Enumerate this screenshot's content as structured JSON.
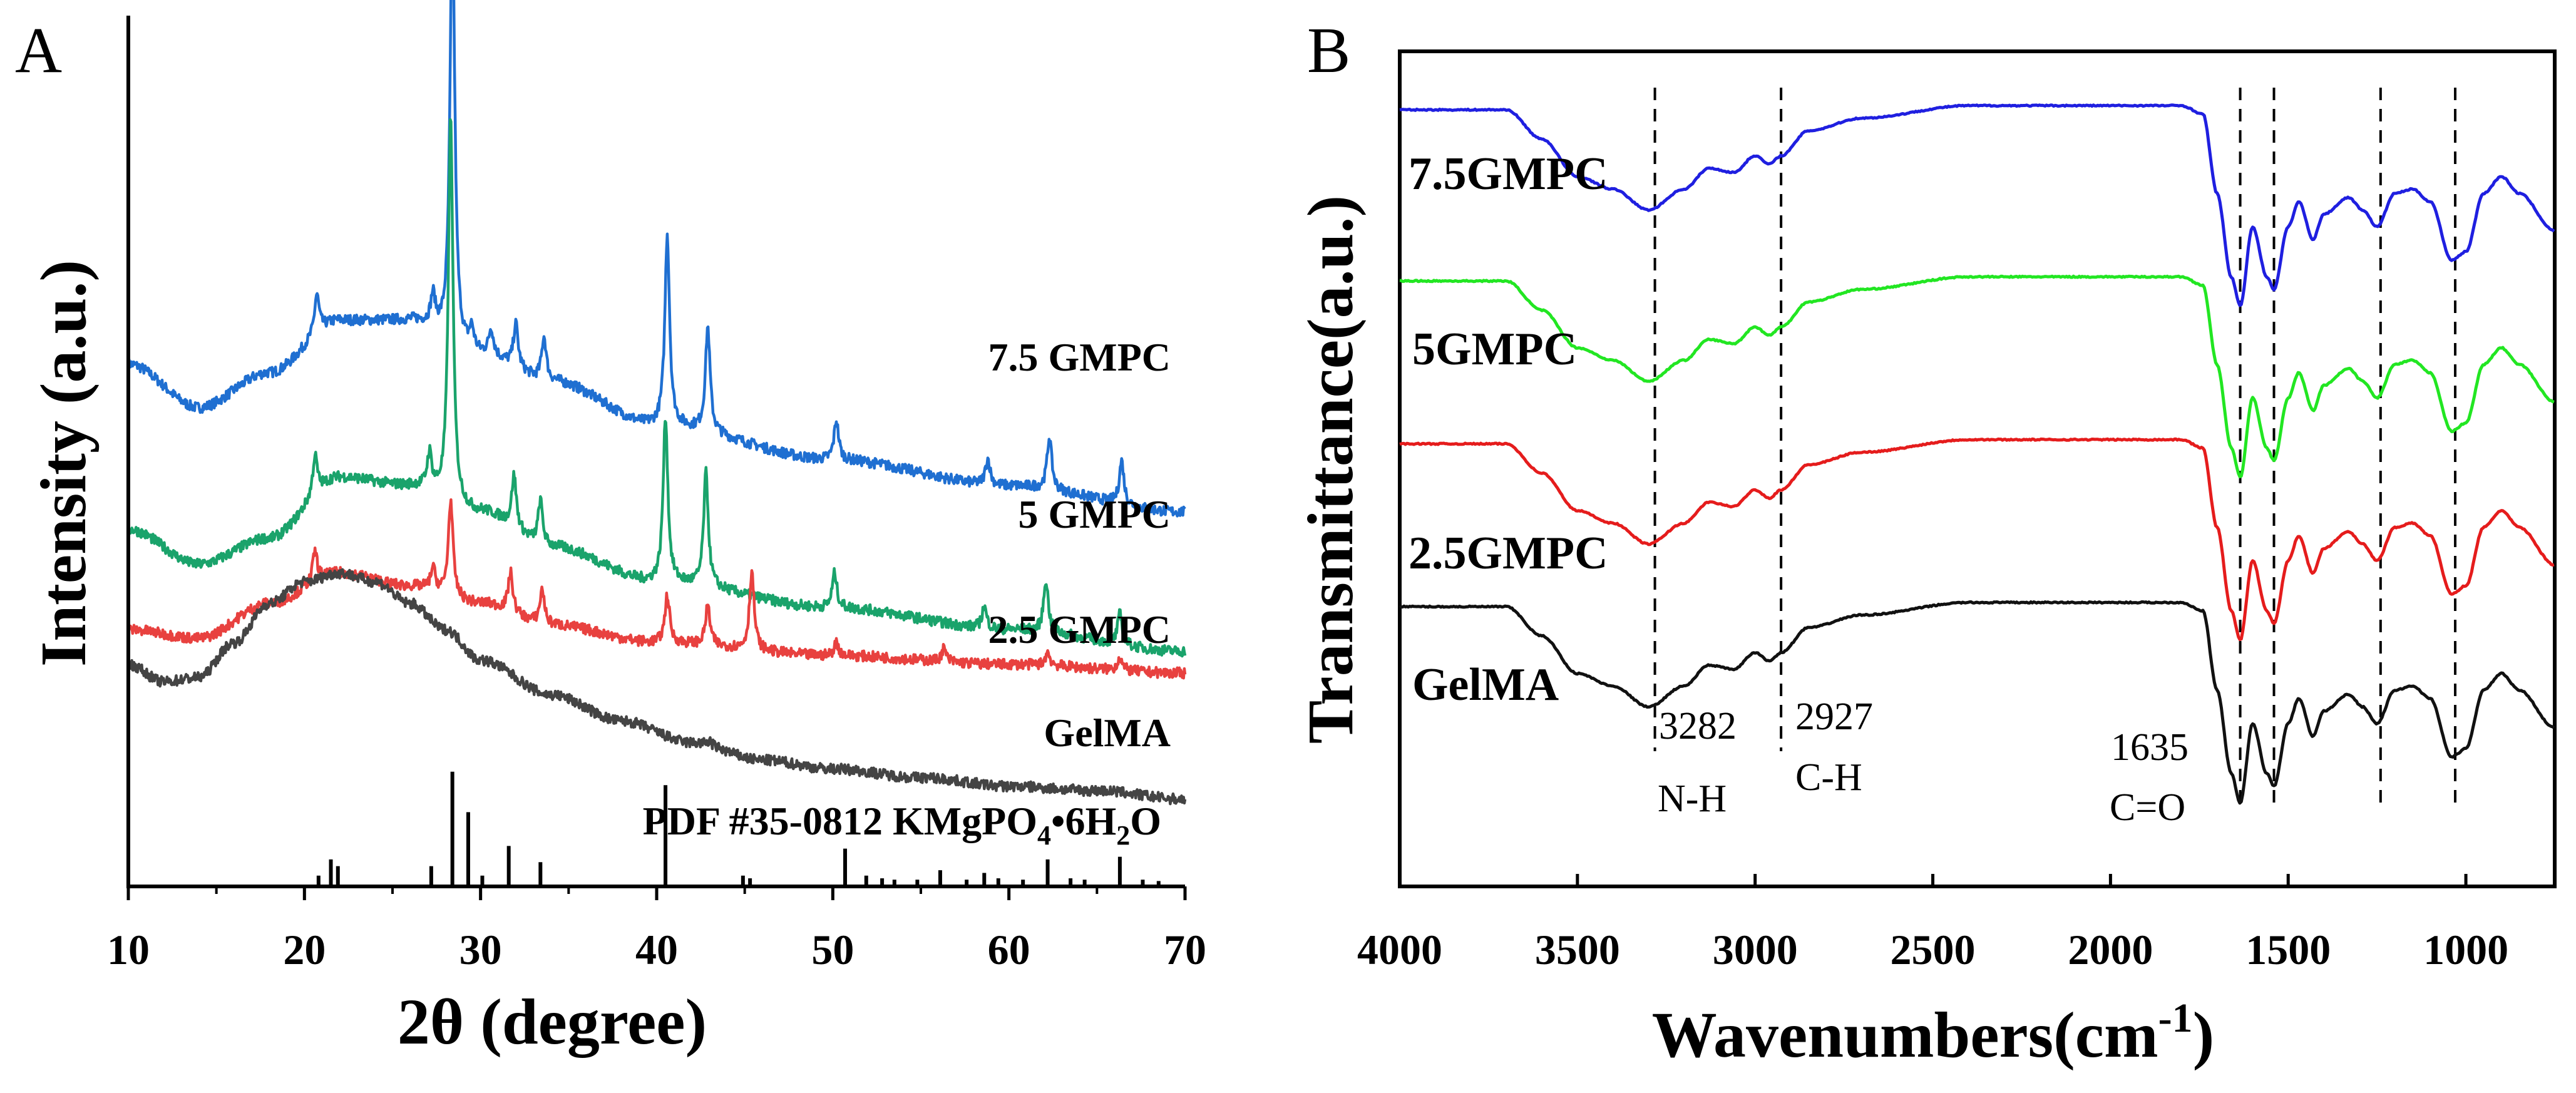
{
  "chart_data": [
    {
      "panel": "A",
      "type": "line",
      "title": "",
      "xlabel": "2θ (degree)",
      "ylabel": "Intensity (a.u.)",
      "xlim": [
        10,
        70
      ],
      "xticks": [
        10,
        20,
        30,
        40,
        50,
        60,
        70
      ],
      "ylim": [
        0,
        10
      ],
      "yticks_shown": false,
      "series": [
        {
          "name": "7.5 GMPC",
          "color": "#1f6fd1",
          "base": [
            [
              10,
              6.0
            ],
            [
              14,
              5.5
            ],
            [
              18,
              5.9
            ],
            [
              22,
              6.5
            ],
            [
              26,
              6.5
            ],
            [
              30,
              6.1
            ],
            [
              34,
              5.8
            ],
            [
              40,
              5.3
            ],
            [
              50,
              4.9
            ],
            [
              60,
              4.6
            ],
            [
              70,
              4.3
            ]
          ],
          "peaks": [
            [
              20.7,
              0.45
            ],
            [
              27.3,
              0.35
            ],
            [
              28.4,
              5.0
            ],
            [
              29.5,
              0.25
            ],
            [
              30.6,
              0.3
            ],
            [
              32.0,
              0.5
            ],
            [
              33.6,
              0.5
            ],
            [
              40.6,
              2.2
            ],
            [
              42.9,
              1.2
            ],
            [
              50.2,
              0.45
            ],
            [
              58.8,
              0.3
            ],
            [
              62.3,
              0.6
            ],
            [
              66.4,
              0.5
            ]
          ]
        },
        {
          "name": "5 GMPC",
          "color": "#1aa36b",
          "base": [
            [
              10,
              4.1
            ],
            [
              14,
              3.7
            ],
            [
              18,
              4.0
            ],
            [
              22,
              4.7
            ],
            [
              26,
              4.6
            ],
            [
              30,
              4.3
            ],
            [
              34,
              3.9
            ],
            [
              40,
              3.5
            ],
            [
              50,
              3.2
            ],
            [
              60,
              2.95
            ],
            [
              70,
              2.7
            ]
          ],
          "peaks": [
            [
              20.6,
              0.45
            ],
            [
              27.1,
              0.4
            ],
            [
              28.3,
              4.4
            ],
            [
              31.9,
              0.6
            ],
            [
              33.4,
              0.5
            ],
            [
              40.5,
              1.9
            ],
            [
              42.8,
              1.3
            ],
            [
              50.1,
              0.4
            ],
            [
              58.6,
              0.25
            ],
            [
              62.1,
              0.6
            ],
            [
              66.3,
              0.35
            ]
          ]
        },
        {
          "name": "2.5 GMPC",
          "color": "#e8413f",
          "base": [
            [
              10,
              2.95
            ],
            [
              14,
              2.85
            ],
            [
              18,
              3.25
            ],
            [
              22,
              3.6
            ],
            [
              26,
              3.45
            ],
            [
              30,
              3.25
            ],
            [
              34,
              3.0
            ],
            [
              40,
              2.8
            ],
            [
              50,
              2.65
            ],
            [
              60,
              2.55
            ],
            [
              70,
              2.45
            ]
          ],
          "peaks": [
            [
              20.6,
              0.35
            ],
            [
              27.3,
              0.25
            ],
            [
              28.3,
              1.1
            ],
            [
              31.7,
              0.45
            ],
            [
              33.5,
              0.4
            ],
            [
              40.6,
              0.55
            ],
            [
              42.9,
              0.45
            ],
            [
              45.4,
              0.9
            ],
            [
              50.2,
              0.15
            ],
            [
              56.3,
              0.15
            ],
            [
              62.2,
              0.15
            ],
            [
              66.3,
              0.15
            ]
          ]
        },
        {
          "name": "GelMA",
          "color": "#444444",
          "base": [
            [
              10,
              2.55
            ],
            [
              12,
              2.35
            ],
            [
              14,
              2.4
            ],
            [
              16,
              2.8
            ],
            [
              18,
              3.25
            ],
            [
              20,
              3.5
            ],
            [
              22,
              3.6
            ],
            [
              24,
              3.5
            ],
            [
              26,
              3.25
            ],
            [
              28,
              2.95
            ],
            [
              30,
              2.6
            ],
            [
              34,
              2.2
            ],
            [
              38,
              1.9
            ],
            [
              42,
              1.65
            ],
            [
              46,
              1.45
            ],
            [
              50,
              1.35
            ],
            [
              55,
              1.25
            ],
            [
              60,
              1.15
            ],
            [
              65,
              1.1
            ],
            [
              70,
              1.0
            ]
          ],
          "peaks": [
            [
              43.0,
              0.05
            ]
          ]
        }
      ],
      "reference": {
        "name": "PDF #35-0812 KMgPO4•6H2O",
        "label_main": "PDF #35-0812 KMgPO",
        "label_sub1": "4",
        "label_mid": "•6H",
        "label_sub2": "2",
        "label_end": "O",
        "sticks": [
          [
            20.8,
            0.08
          ],
          [
            21.5,
            0.2
          ],
          [
            21.9,
            0.15
          ],
          [
            27.2,
            0.15
          ],
          [
            28.4,
            0.85
          ],
          [
            29.3,
            0.55
          ],
          [
            30.1,
            0.08
          ],
          [
            31.6,
            0.3
          ],
          [
            33.4,
            0.18
          ],
          [
            40.5,
            0.75
          ],
          [
            44.9,
            0.08
          ],
          [
            45.3,
            0.06
          ],
          [
            50.7,
            0.28
          ],
          [
            51.9,
            0.08
          ],
          [
            52.8,
            0.06
          ],
          [
            53.5,
            0.05
          ],
          [
            54.8,
            0.05
          ],
          [
            56.1,
            0.12
          ],
          [
            57.6,
            0.05
          ],
          [
            58.6,
            0.1
          ],
          [
            59.4,
            0.06
          ],
          [
            60.8,
            0.05
          ],
          [
            62.2,
            0.2
          ],
          [
            63.5,
            0.06
          ],
          [
            64.3,
            0.05
          ],
          [
            66.3,
            0.22
          ],
          [
            67.6,
            0.05
          ],
          [
            68.5,
            0.04
          ]
        ]
      }
    },
    {
      "panel": "B",
      "type": "line",
      "title": "",
      "xlabel": "Wavenumbers(cm",
      "xlabel_sup": "-1",
      "xlabel_end": ")",
      "ylabel": "Transmittance(a.u.)",
      "xlim": [
        4000,
        750
      ],
      "xticks": [
        4000,
        3500,
        3000,
        2500,
        2000,
        1500,
        1000
      ],
      "ylim": [
        0,
        10
      ],
      "yticks_shown": false,
      "series": [
        {
          "name": "7.5GMPC",
          "color": "#1f1fe0",
          "offset": 6.3
        },
        {
          "name": "5GMPC",
          "color": "#22e622",
          "offset": 4.25
        },
        {
          "name": "2.5GMPC",
          "color": "#e51c1c",
          "offset": 2.3
        },
        {
          "name": "GelMA",
          "color": "#111111",
          "offset": 0.35
        }
      ],
      "profile": [
        [
          4000,
          3.0
        ],
        [
          3700,
          3.0
        ],
        [
          3600,
          2.65
        ],
        [
          3500,
          2.2
        ],
        [
          3400,
          2.05
        ],
        [
          3300,
          1.8
        ],
        [
          3200,
          2.05
        ],
        [
          3130,
          2.3
        ],
        [
          3060,
          2.25
        ],
        [
          3000,
          2.45
        ],
        [
          2960,
          2.35
        ],
        [
          2927,
          2.45
        ],
        [
          2850,
          2.75
        ],
        [
          2700,
          2.9
        ],
        [
          2400,
          3.05
        ],
        [
          2000,
          3.05
        ],
        [
          1800,
          3.05
        ],
        [
          1740,
          2.95
        ],
        [
          1700,
          2.0
        ],
        [
          1660,
          1.0
        ],
        [
          1635,
          0.65
        ],
        [
          1600,
          1.6
        ],
        [
          1560,
          1.0
        ],
        [
          1540,
          0.85
        ],
        [
          1500,
          1.6
        ],
        [
          1470,
          1.9
        ],
        [
          1430,
          1.45
        ],
        [
          1400,
          1.75
        ],
        [
          1330,
          1.95
        ],
        [
          1290,
          1.8
        ],
        [
          1250,
          1.6
        ],
        [
          1200,
          2.0
        ],
        [
          1150,
          2.05
        ],
        [
          1100,
          1.9
        ],
        [
          1040,
          1.2
        ],
        [
          1000,
          1.3
        ],
        [
          950,
          2.0
        ],
        [
          900,
          2.2
        ],
        [
          850,
          2.0
        ],
        [
          750,
          1.55
        ]
      ],
      "guide_lines": [
        3282,
        2927,
        1635,
        1540,
        1240,
        1030
      ],
      "annotations": [
        {
          "wn_label": "3282",
          "group": "N-H"
        },
        {
          "wn_label": "2927",
          "group": "C-H"
        },
        {
          "wn_label": "1635",
          "group": "C=O"
        }
      ]
    }
  ],
  "panels": {
    "a_letter": "A",
    "b_letter": "B"
  }
}
